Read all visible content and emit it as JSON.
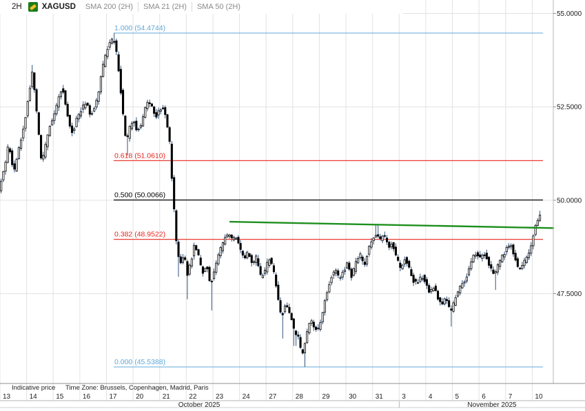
{
  "header": {
    "timeframe": "2H",
    "symbol": "XAGUSD",
    "instrument_icon": "bullion-flag-icon",
    "indicators": [
      {
        "label": "SMA 200 (2H)"
      },
      {
        "label": "SMA 21 (2H)"
      },
      {
        "label": "SMA 50 (2H)"
      }
    ]
  },
  "footer": {
    "indicative": "Indicative price",
    "timezone": "Time Zone: Brussels, Copenhagen, Madrid, Paris"
  },
  "colors": {
    "fib_blue": "#5fa8d8",
    "fib_red": "#e6261d",
    "fib_black": "#000000",
    "trend_green": "#118a11",
    "candle_up": "#ffffff",
    "candle_down": "#000000",
    "candle_outline": "#000000",
    "wick": "#33517c",
    "grid": "#e2e2e2",
    "frame": "#b5b5b5",
    "axis_line_dark": "#8f8f8f",
    "text": "#1a1a1a",
    "muted_text": "#8a8a8a"
  },
  "chart_data": {
    "type": "candlestick",
    "symbol": "XAGUSD",
    "interval": "2H",
    "ylim": [
      45.0966,
      55.3587
    ],
    "y_axis": {
      "side": "right",
      "ticks": [
        {
          "label": "55.0000",
          "price": 55.0
        },
        {
          "label": "52.5000",
          "price": 52.5
        },
        {
          "label": "50.0000",
          "price": 50.0
        },
        {
          "label": "47.5000",
          "price": 47.5
        }
      ]
    },
    "x_axis": {
      "dates": [
        "13",
        "14",
        "15",
        "16",
        "17",
        "20",
        "21",
        "22",
        "23",
        "24",
        "27",
        "28",
        "29",
        "30",
        "31",
        "3",
        "4",
        "5",
        "6",
        "7",
        "10"
      ],
      "months": [
        {
          "label": "October 2025"
        },
        {
          "label": "November 2025"
        }
      ]
    },
    "fib_levels": [
      {
        "ratio": "1.000",
        "price": 54.4744,
        "label": "1.000 (54.4744)",
        "color_key": "fib_blue"
      },
      {
        "ratio": "0.618",
        "price": 51.061,
        "label": "0.618 (51.0610)",
        "color_key": "fib_red"
      },
      {
        "ratio": "0.500",
        "price": 50.0066,
        "label": "0.500 (50.0066)",
        "color_key": "fib_black"
      },
      {
        "ratio": "0.382",
        "price": 48.9522,
        "label": "0.382 (48.9522)",
        "color_key": "fib_red"
      },
      {
        "ratio": "0.000",
        "price": 45.5388,
        "label": "0.000 (45.5388)",
        "color_key": "fib_blue"
      }
    ],
    "trendline": {
      "x1": 334,
      "price1": 49.425,
      "x2": 803,
      "price2": 49.255,
      "color_key": "trend_green"
    },
    "price_path": [
      [
        0,
        50.25
      ],
      [
        5,
        50.65
      ],
      [
        10,
        51.05
      ],
      [
        14,
        51.55
      ],
      [
        18,
        51.1
      ],
      [
        22,
        50.75
      ],
      [
        27,
        51.2
      ],
      [
        33,
        51.7
      ],
      [
        39,
        52.3
      ],
      [
        44,
        52.9
      ],
      [
        48,
        53.45
      ],
      [
        52,
        52.9
      ],
      [
        57,
        51.9
      ],
      [
        62,
        50.95
      ],
      [
        67,
        51.4
      ],
      [
        73,
        51.95
      ],
      [
        79,
        52.2
      ],
      [
        86,
        52.7
      ],
      [
        92,
        53.05
      ],
      [
        97,
        52.5
      ],
      [
        102,
        52.05
      ],
      [
        107,
        51.8
      ],
      [
        113,
        52.2
      ],
      [
        120,
        52.45
      ],
      [
        127,
        52.65
      ],
      [
        133,
        52.25
      ],
      [
        139,
        52.5
      ],
      [
        145,
        52.95
      ],
      [
        151,
        53.6
      ],
      [
        157,
        54.05
      ],
      [
        163,
        54.3
      ],
      [
        167,
        54.25
      ],
      [
        171,
        53.9
      ],
      [
        176,
        53.1
      ],
      [
        181,
        52.1
      ],
      [
        185,
        51.55
      ],
      [
        190,
        51.95
      ],
      [
        195,
        52.2
      ],
      [
        200,
        51.85
      ],
      [
        205,
        51.95
      ],
      [
        211,
        52.4
      ],
      [
        217,
        52.65
      ],
      [
        222,
        52.5
      ],
      [
        227,
        52.2
      ],
      [
        232,
        52.4
      ],
      [
        238,
        52.5
      ],
      [
        243,
        52.15
      ],
      [
        247,
        51.75
      ],
      [
        251,
        50.6
      ],
      [
        255,
        49.5
      ],
      [
        259,
        48.55
      ],
      [
        264,
        48.35
      ],
      [
        269,
        48.6
      ],
      [
        273,
        48.0
      ],
      [
        278,
        48.3
      ],
      [
        284,
        48.85
      ],
      [
        289,
        48.55
      ],
      [
        295,
        48.05
      ],
      [
        301,
        48.3
      ],
      [
        307,
        47.75
      ],
      [
        313,
        48.15
      ],
      [
        319,
        48.55
      ],
      [
        326,
        48.9
      ],
      [
        332,
        49.1
      ],
      [
        338,
        48.95
      ],
      [
        344,
        49.05
      ],
      [
        350,
        48.7
      ],
      [
        356,
        48.45
      ],
      [
        362,
        48.65
      ],
      [
        368,
        48.25
      ],
      [
        374,
        48.5
      ],
      [
        380,
        47.95
      ],
      [
        386,
        48.1
      ],
      [
        392,
        48.45
      ],
      [
        398,
        48.15
      ],
      [
        404,
        47.5
      ],
      [
        410,
        46.85
      ],
      [
        416,
        47.25
      ],
      [
        422,
        47.0
      ],
      [
        428,
        46.55
      ],
      [
        434,
        46.35
      ],
      [
        440,
        45.85
      ],
      [
        446,
        46.35
      ],
      [
        452,
        46.8
      ],
      [
        458,
        46.6
      ],
      [
        464,
        46.55
      ],
      [
        470,
        47.05
      ],
      [
        476,
        47.55
      ],
      [
        482,
        47.95
      ],
      [
        488,
        48.15
      ],
      [
        494,
        47.9
      ],
      [
        500,
        48.1
      ],
      [
        506,
        48.35
      ],
      [
        512,
        47.95
      ],
      [
        518,
        48.35
      ],
      [
        524,
        48.55
      ],
      [
        530,
        48.25
      ],
      [
        536,
        48.65
      ],
      [
        542,
        48.95
      ],
      [
        547,
        49.1
      ],
      [
        553,
        48.95
      ],
      [
        559,
        49.05
      ],
      [
        565,
        48.75
      ],
      [
        571,
        48.85
      ],
      [
        577,
        48.45
      ],
      [
        583,
        48.15
      ],
      [
        589,
        48.45
      ],
      [
        595,
        48.2
      ],
      [
        601,
        47.85
      ],
      [
        607,
        47.75
      ],
      [
        613,
        48.0
      ],
      [
        619,
        47.8
      ],
      [
        625,
        47.55
      ],
      [
        631,
        47.7
      ],
      [
        637,
        47.4
      ],
      [
        643,
        47.25
      ],
      [
        649,
        47.35
      ],
      [
        655,
        47.0
      ],
      [
        661,
        47.3
      ],
      [
        667,
        47.6
      ],
      [
        673,
        47.75
      ],
      [
        679,
        48.0
      ],
      [
        685,
        48.3
      ],
      [
        691,
        48.6
      ],
      [
        697,
        48.45
      ],
      [
        703,
        48.6
      ],
      [
        709,
        48.4
      ],
      [
        715,
        48.1
      ],
      [
        719,
        47.95
      ],
      [
        725,
        48.3
      ],
      [
        731,
        48.5
      ],
      [
        737,
        48.7
      ],
      [
        743,
        48.8
      ],
      [
        749,
        48.45
      ],
      [
        755,
        48.1
      ],
      [
        761,
        48.3
      ],
      [
        767,
        48.5
      ],
      [
        771,
        48.7
      ],
      [
        775,
        49.0
      ],
      [
        779,
        49.35
      ],
      [
        783,
        49.55
      ],
      [
        785,
        49.6
      ]
    ],
    "wick_extremes": [
      {
        "x": 48,
        "high": 53.62
      },
      {
        "x": 166,
        "high": 54.4744
      },
      {
        "x": 184,
        "low": 51.2
      },
      {
        "x": 259,
        "low": 47.95
      },
      {
        "x": 273,
        "low": 47.35
      },
      {
        "x": 307,
        "low": 47.05
      },
      {
        "x": 410,
        "low": 46.3
      },
      {
        "x": 428,
        "low": 46.1
      },
      {
        "x": 441,
        "low": 45.5388
      },
      {
        "x": 547,
        "high": 49.33
      },
      {
        "x": 655,
        "low": 46.62
      },
      {
        "x": 719,
        "low": 47.6
      },
      {
        "x": 784,
        "high": 49.72
      }
    ]
  }
}
